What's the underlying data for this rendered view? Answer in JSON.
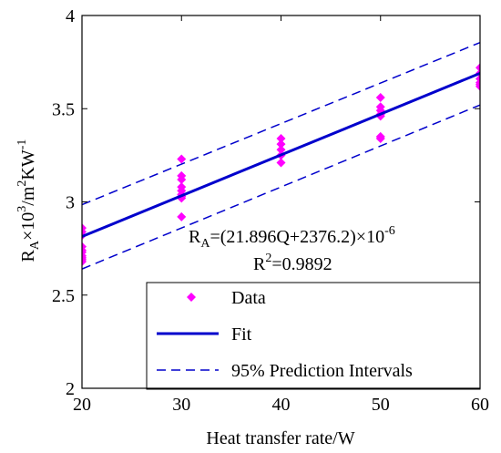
{
  "chart_data": {
    "type": "scatter",
    "xlabel": "Heat transfer rate/W",
    "ylabel": {
      "main": "R",
      "sub": "A",
      "rest1": "×10",
      "sup1": "3",
      "rest2": "/m",
      "sup2": "2",
      "rest3": "KW",
      "sup3": "-1"
    },
    "xlim": [
      20,
      60
    ],
    "ylim": [
      2,
      4
    ],
    "xticks": [
      20,
      30,
      40,
      50,
      60
    ],
    "yticks": [
      2,
      2.5,
      3,
      3.5,
      4
    ],
    "xtick_labels": [
      "20",
      "30",
      "40",
      "50",
      "60"
    ],
    "ytick_labels": [
      "2",
      "2.5",
      "3",
      "3.5",
      "4"
    ],
    "grid": false,
    "legend_position": "bottom-right",
    "colors": {
      "data": "#ff00ff",
      "fit": "#0000cc",
      "interval": "#0000cc"
    },
    "series": [
      {
        "name": "Data",
        "kind": "scatter",
        "x": [
          20,
          20,
          20,
          20,
          20,
          20,
          20,
          20,
          20,
          20,
          30,
          30,
          30,
          30,
          30,
          30,
          30,
          30,
          30,
          40,
          40,
          40,
          40,
          40,
          50,
          50,
          50,
          50,
          50,
          50,
          50,
          60,
          60,
          60,
          60,
          60,
          60
        ],
        "y": [
          2.86,
          2.84,
          2.82,
          2.76,
          2.74,
          2.73,
          2.71,
          2.7,
          2.69,
          2.68,
          3.23,
          3.14,
          3.12,
          3.08,
          3.06,
          3.04,
          3.03,
          3.02,
          2.92,
          3.34,
          3.31,
          3.28,
          3.25,
          3.21,
          3.56,
          3.51,
          3.49,
          3.47,
          3.46,
          3.35,
          3.34,
          3.72,
          3.69,
          3.66,
          3.64,
          3.63,
          3.62
        ]
      },
      {
        "name": "Fit",
        "kind": "line",
        "x": [
          20,
          60
        ],
        "y": [
          2.814,
          3.69
        ]
      },
      {
        "name": "95% Prediction Intervals",
        "kind": "dashed",
        "x": [
          20,
          60
        ],
        "y": [
          2.985,
          3.855
        ]
      },
      {
        "kind": "dashed",
        "x": [
          20,
          60
        ],
        "y": [
          2.64,
          3.52
        ]
      }
    ],
    "annotations": {
      "equation": {
        "a": "R",
        "sub": "A",
        "b": "=(21.896Q+2376.2)×10",
        "sup": "-6"
      },
      "r2": {
        "a": "R",
        "sup": "2",
        "b": "=0.9892"
      }
    }
  }
}
